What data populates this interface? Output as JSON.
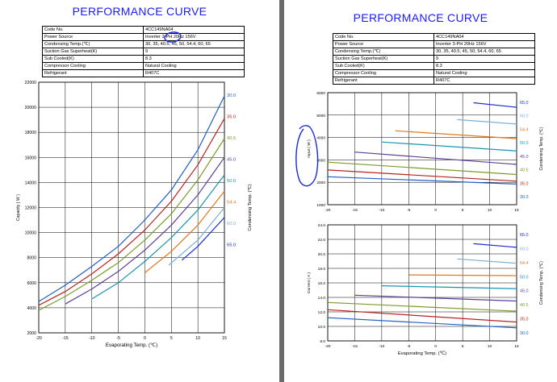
{
  "left_page": {
    "title": "PERFORMANCE CURVE",
    "spec": [
      {
        "key": "Code  No.",
        "value": "4CC149NA04"
      },
      {
        "key": "Power Source",
        "value": "Inverter 3-PH 20Hz 156V"
      },
      {
        "key": "Condensing Temp.(℃)",
        "value": "30,  35,  40.5,  45,  50,  54.4,  60,  65"
      },
      {
        "key": "Suction Gas Superheat(K)",
        "value": "9"
      },
      {
        "key": "Sub Cooled(K)",
        "value": "8.3"
      },
      {
        "key": "Compressor Cooling",
        "value": "Natural Cooling"
      },
      {
        "key": "Refrigerant",
        "value": "R407C"
      }
    ]
  },
  "right_page": {
    "title": "PERFORMANCE CURVE",
    "spec": [
      {
        "key": "Code  No.",
        "value": "4CC149NA04"
      },
      {
        "key": "Power Source",
        "value": "Inverter 3-PH 20Hz 156V"
      },
      {
        "key": "Condensing Temp.(℃)",
        "value": "30,  35,  40.5,  45,  50,  54.4,  60,  65"
      },
      {
        "key": "Suction Gas Superheat(K)",
        "value": "9"
      },
      {
        "key": "Sub Cooled(K)",
        "value": "8.3"
      },
      {
        "key": "Compressor Cooling",
        "value": "Natural Cooling"
      },
      {
        "key": "Refrigerant",
        "value": "R407C"
      }
    ]
  },
  "annotation_color": "#1a2ad8",
  "chart_data": [
    {
      "id": "capacity",
      "type": "line",
      "xlabel": "Evaporating Temp. (℃)",
      "ylabel": "Capacity  ( W )",
      "right_label": "Condensing Temp. (℃)",
      "xlim": [
        -20,
        15
      ],
      "ylim": [
        2000,
        22000
      ],
      "xticks": [
        -20,
        -15,
        -10,
        -5,
        0,
        5,
        10,
        15
      ],
      "yticks": [
        2000,
        4000,
        6000,
        8000,
        10000,
        12000,
        14000,
        16000,
        18000,
        20000,
        22000
      ],
      "grid": true,
      "series": [
        {
          "name": "30.0",
          "color": "#1f5fc4",
          "x": [
            -20,
            -15,
            -10,
            -5,
            0,
            5,
            10,
            15
          ],
          "y": [
            4500,
            5800,
            7300,
            8900,
            11000,
            13400,
            16600,
            20900
          ]
        },
        {
          "name": "35.0",
          "color": "#b8231f",
          "x": [
            -20,
            -15,
            -10,
            -5,
            0,
            5,
            10,
            15
          ],
          "y": [
            4200,
            5300,
            6700,
            8300,
            10200,
            12500,
            15400,
            19100
          ]
        },
        {
          "name": "40.5",
          "color": "#7c9a2c",
          "x": [
            -20,
            -15,
            -10,
            -5,
            0,
            5,
            10,
            15
          ],
          "y": [
            3800,
            4900,
            6200,
            7600,
            9400,
            11500,
            14200,
            17500
          ]
        },
        {
          "name": "45.0",
          "color": "#5c3f99",
          "x": [
            -15,
            -10,
            -5,
            0,
            5,
            10,
            15
          ],
          "y": [
            4300,
            5500,
            6900,
            8600,
            10600,
            13000,
            16000
          ]
        },
        {
          "name": "50.0",
          "color": "#1b93b0",
          "x": [
            -10,
            -5,
            0,
            5,
            10,
            15
          ],
          "y": [
            4700,
            6000,
            7700,
            9600,
            11800,
            14600
          ]
        },
        {
          "name": "54.4",
          "color": "#e0781e",
          "x": [
            0,
            5,
            10,
            15
          ],
          "y": [
            6800,
            8500,
            10600,
            13300
          ]
        },
        {
          "name": "60.0",
          "color": "#7ab0d8",
          "x": [
            4.5,
            10,
            15
          ],
          "y": [
            7400,
            9400,
            12000
          ]
        },
        {
          "name": "65.0",
          "color": "#1a2ad8",
          "x": [
            7,
            10,
            15
          ],
          "y": [
            7800,
            8900,
            11200
          ]
        }
      ]
    },
    {
      "id": "input",
      "type": "line",
      "xlabel": "",
      "ylabel": "Input  ( W )",
      "right_label": "Condensing Temp. (℃)",
      "xlim": [
        -20,
        15
      ],
      "ylim": [
        1000,
        6000
      ],
      "xticks": [
        -20,
        -15,
        -10,
        -5,
        0,
        5,
        10,
        15
      ],
      "yticks": [
        1000,
        2000,
        3000,
        4000,
        5000,
        6000
      ],
      "grid": true,
      "series": [
        {
          "name": "30.0",
          "color": "#1f5fc4",
          "x": [
            -20,
            15
          ],
          "y": [
            2250,
            1920
          ]
        },
        {
          "name": "35.0",
          "color": "#b8231f",
          "x": [
            -20,
            15
          ],
          "y": [
            2550,
            2050
          ]
        },
        {
          "name": "40.5",
          "color": "#7c9a2c",
          "x": [
            -20,
            15
          ],
          "y": [
            2900,
            2350
          ]
        },
        {
          "name": "45.0",
          "color": "#5c3f99",
          "x": [
            -15,
            15
          ],
          "y": [
            3350,
            2800
          ]
        },
        {
          "name": "50.0",
          "color": "#1b93b0",
          "x": [
            -10,
            15
          ],
          "y": [
            3800,
            3400
          ]
        },
        {
          "name": "54.4",
          "color": "#e0781e",
          "x": [
            -7.5,
            15
          ],
          "y": [
            4300,
            3950
          ]
        },
        {
          "name": "60.0",
          "color": "#7ab0d8",
          "x": [
            4,
            15
          ],
          "y": [
            4800,
            4600
          ]
        },
        {
          "name": "65.0",
          "color": "#1a2ad8",
          "x": [
            7,
            15
          ],
          "y": [
            5550,
            5350
          ]
        }
      ]
    },
    {
      "id": "current",
      "type": "line",
      "xlabel": "Evaporating Temp. (℃)",
      "ylabel": "Current  ( A )",
      "right_label": "Condensing Temp. (℃)",
      "xlim": [
        -20,
        15
      ],
      "ylim": [
        8.0,
        24.0
      ],
      "xticks": [
        -20,
        -15,
        -10,
        -5,
        0,
        5,
        10,
        15
      ],
      "yticks": [
        "8.0",
        "10.0",
        "12.0",
        "14.0",
        "16.0",
        "18.0",
        "20.0",
        "22.0",
        "24.0"
      ],
      "grid": true,
      "series": [
        {
          "name": "30.0",
          "color": "#1f5fc4",
          "x": [
            -20,
            15
          ],
          "y": [
            11.2,
            9.8
          ]
        },
        {
          "name": "35.0",
          "color": "#b8231f",
          "x": [
            -20,
            15
          ],
          "y": [
            12.3,
            10.6
          ]
        },
        {
          "name": "40.5",
          "color": "#7c9a2c",
          "x": [
            -20,
            15
          ],
          "y": [
            13.3,
            12.1
          ]
        },
        {
          "name": "45.0",
          "color": "#5c3f99",
          "x": [
            -15,
            15
          ],
          "y": [
            14.3,
            13.5
          ]
        },
        {
          "name": "50.0",
          "color": "#1b93b0",
          "x": [
            -10,
            15
          ],
          "y": [
            15.6,
            15.2
          ]
        },
        {
          "name": "54.4",
          "color": "#e0781e",
          "x": [
            -5,
            15
          ],
          "y": [
            17.1,
            17.0
          ]
        },
        {
          "name": "60.0",
          "color": "#7ab0d8",
          "x": [
            4,
            15
          ],
          "y": [
            19.3,
            18.7
          ]
        },
        {
          "name": "65.0",
          "color": "#1a2ad8",
          "x": [
            7,
            15
          ],
          "y": [
            21.4,
            20.9
          ]
        }
      ]
    }
  ]
}
